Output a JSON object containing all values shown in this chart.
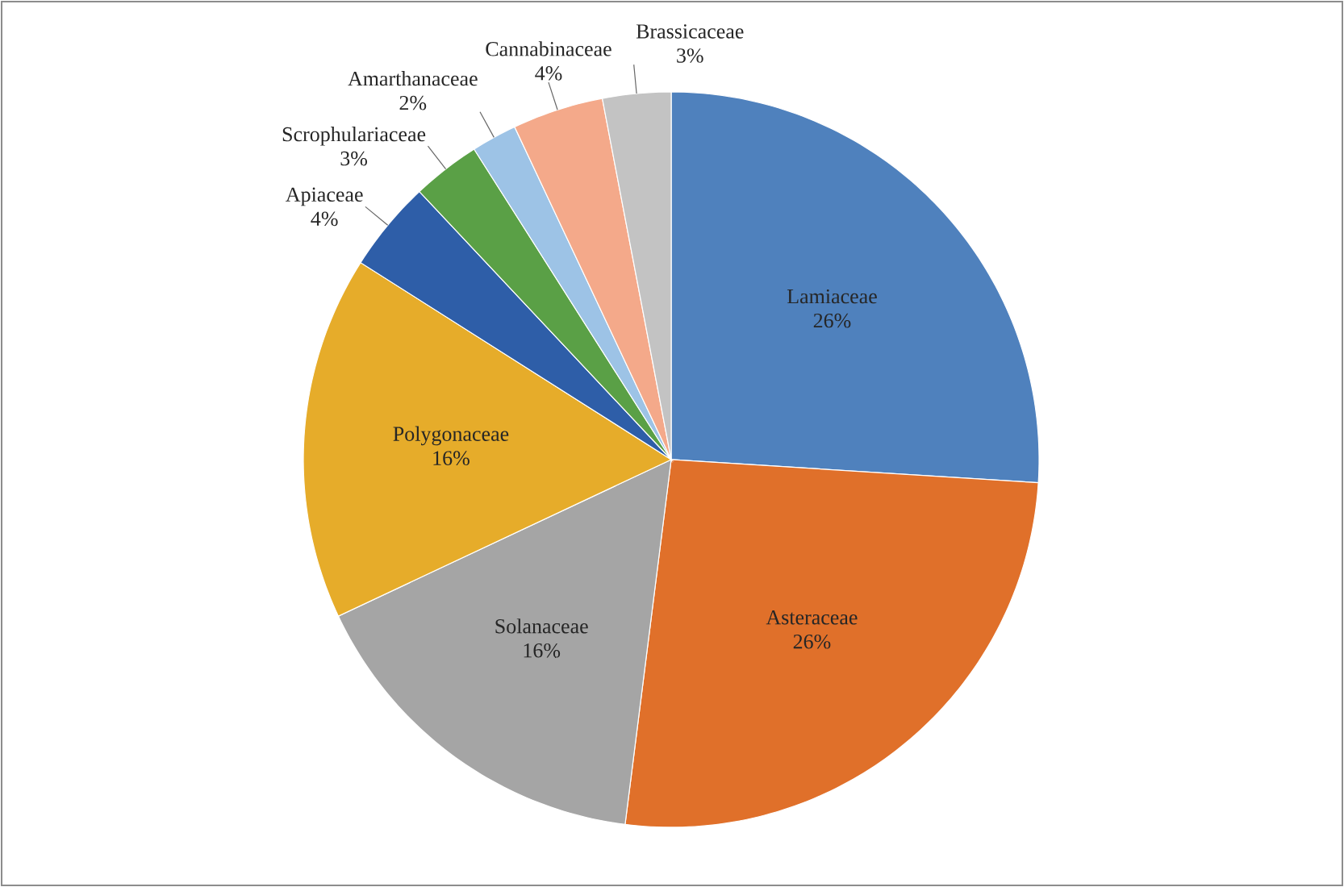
{
  "chart_data": {
    "type": "pie",
    "categories": [
      "Lamiaceae",
      "Asteraceae",
      "Solanaceae",
      "Polygonaceae",
      "Apiaceae",
      "Scrophulariaceae",
      "Amarthanaceae",
      "Cannabinaceae",
      "Brassicaceae"
    ],
    "values": [
      26,
      26,
      16,
      16,
      4,
      3,
      2,
      4,
      3
    ],
    "value_labels": [
      "26%",
      "26%",
      "16%",
      "16%",
      "4%",
      "3%",
      "2%",
      "4%",
      "3%"
    ],
    "colors": [
      "#4f81bd",
      "#e0702a",
      "#a5a5a5",
      "#e6ac2a",
      "#2e5ea8",
      "#5aa046",
      "#9dc3e6",
      "#f4a98a",
      "#c3c3c3"
    ]
  }
}
